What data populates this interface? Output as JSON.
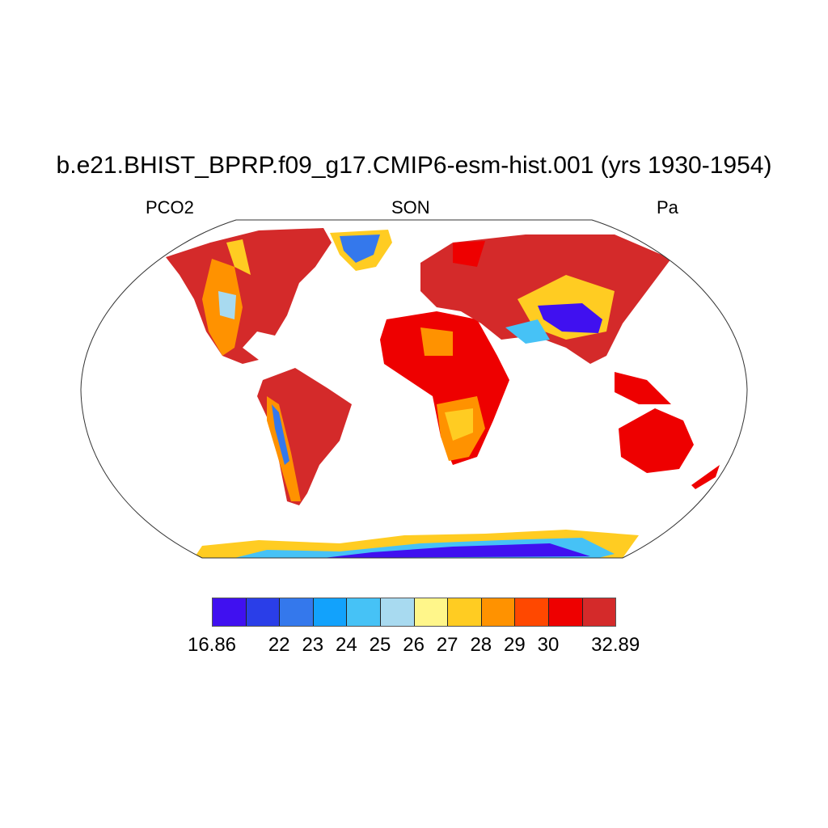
{
  "title": "b.e21.BHIST_BPRP.f09_g17.CMIP6-esm-hist.001 (yrs 1930-1954)",
  "left_label": "PCO2",
  "center_label": "SON",
  "right_label": "Pa",
  "colorbar": {
    "colors": [
      "#4010f0",
      "#2a3ee8",
      "#3478ec",
      "#12a2fc",
      "#46c2f6",
      "#a8daf0",
      "#fff68a",
      "#ffcc22",
      "#ff9200",
      "#ff4800",
      "#ee0000",
      "#d42a2a"
    ],
    "labels": [
      "16.86",
      "22",
      "23",
      "24",
      "25",
      "26",
      "27",
      "28",
      "29",
      "30",
      "32.89"
    ]
  }
}
